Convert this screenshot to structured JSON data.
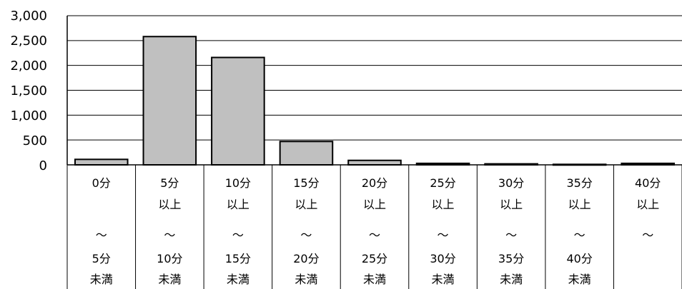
{
  "chart_data": {
    "type": "bar",
    "title": "",
    "xlabel": "",
    "ylabel": "",
    "ylim": [
      0,
      3000
    ],
    "yticks": [
      "3,000",
      "2,500",
      "2,000",
      "1,500",
      "1,000",
      "500",
      "0"
    ],
    "grid": true,
    "legend": "none",
    "categories": [
      [
        "0分",
        "",
        "～",
        "5分",
        "未満"
      ],
      [
        "5分",
        "以上",
        "～",
        "10分",
        "未満"
      ],
      [
        "10分",
        "以上",
        "～",
        "15分",
        "未満"
      ],
      [
        "15分",
        "以上",
        "～",
        "20分",
        "未満"
      ],
      [
        "20分",
        "以上",
        "～",
        "25分",
        "未満"
      ],
      [
        "25分",
        "以上",
        "～",
        "30分",
        "未満"
      ],
      [
        "30分",
        "以上",
        "～",
        "35分",
        "未満"
      ],
      [
        "35分",
        "以上",
        "～",
        "40分",
        "未満"
      ],
      [
        "40分",
        "以上",
        "～",
        "",
        ""
      ]
    ],
    "values": [
      110,
      2580,
      2160,
      470,
      90,
      30,
      20,
      10,
      30
    ],
    "colors": {
      "bar": "#c0c0c0",
      "bar_stroke": "#000000",
      "grid": "#000000"
    }
  }
}
